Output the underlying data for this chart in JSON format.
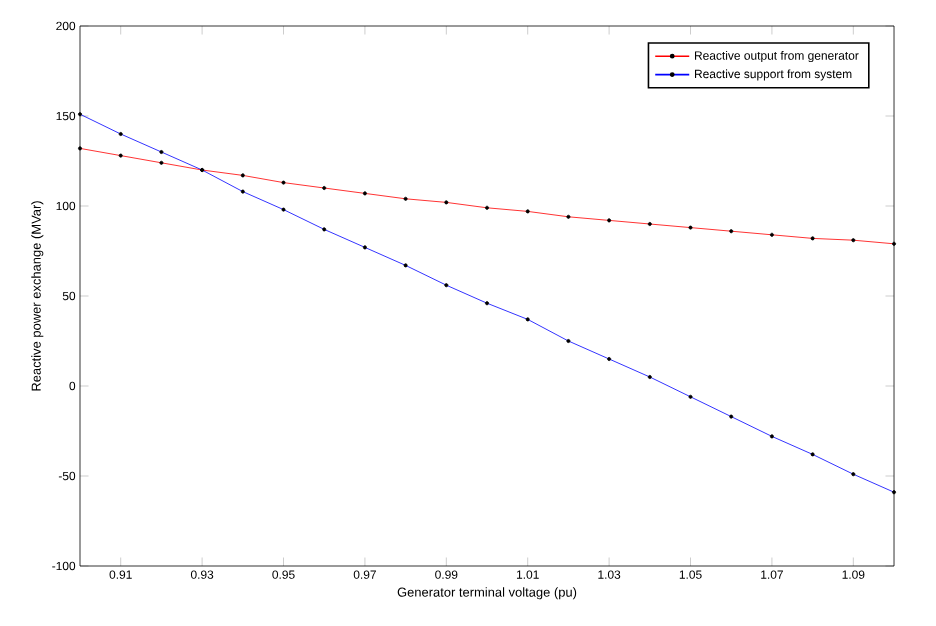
{
  "chart_data": {
    "type": "line",
    "xlabel": "Generator terminal voltage (pu)",
    "ylabel": "Reactive power exchange (MVar)",
    "x": [
      0.9,
      0.91,
      0.92,
      0.93,
      0.94,
      0.95,
      0.96,
      0.97,
      0.98,
      0.99,
      1.0,
      1.01,
      1.02,
      1.03,
      1.04,
      1.05,
      1.06,
      1.07,
      1.08,
      1.09,
      1.1
    ],
    "series": [
      {
        "name": "Reactive output from generator",
        "color": "#ff0000",
        "values": [
          132,
          128,
          124,
          120,
          117,
          113,
          110,
          107,
          104,
          102,
          99,
          97,
          94,
          92,
          90,
          88,
          86,
          84,
          82,
          81,
          79
        ]
      },
      {
        "name": "Reactive support from system",
        "color": "#0000ff",
        "values": [
          151,
          140,
          130,
          120,
          108,
          98,
          87,
          77,
          67,
          56,
          46,
          37,
          25,
          15,
          5,
          -6,
          -17,
          -28,
          -38,
          -49,
          -59
        ]
      }
    ],
    "xlim": [
      0.9,
      1.1
    ],
    "xticks": [
      0.91,
      0.93,
      0.95,
      0.97,
      0.99,
      1.01,
      1.03,
      1.05,
      1.07,
      1.09
    ],
    "ylim": [
      -100,
      200
    ],
    "yticks": [
      -100,
      -50,
      0,
      50,
      100,
      150,
      200
    ],
    "legend": "top right",
    "marker": "circle",
    "line_style": "solid",
    "grid": false
  }
}
